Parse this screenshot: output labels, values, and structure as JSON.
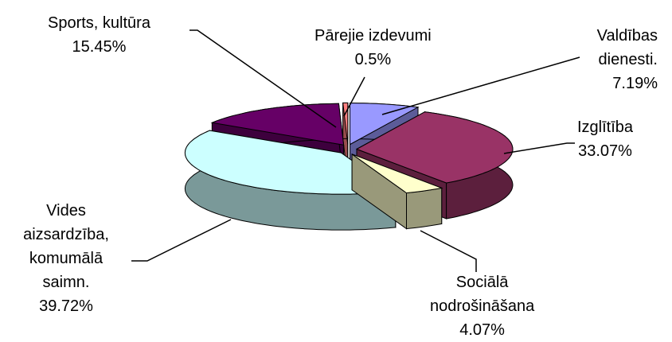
{
  "chart_data": {
    "type": "pie",
    "categories": [
      "Valdības\ndienesti.",
      "Izglītība",
      "Sociālā\nnodrošināšana",
      "Vides\naizsardzība,\nkomumālā\nsaimn.",
      "Sports, kultūra",
      "Pārejie izdevumi"
    ],
    "values": [
      7.19,
      33.07,
      4.07,
      39.72,
      15.45,
      0.5
    ],
    "value_labels": [
      "7.19%",
      "33.07%",
      "4.07%",
      "39.72%",
      "15.45%",
      "0.5%"
    ],
    "colors": [
      "#9999ff",
      "#993366",
      "#ffffcc",
      "#ccffff",
      "#660066",
      "#ff8080"
    ]
  }
}
